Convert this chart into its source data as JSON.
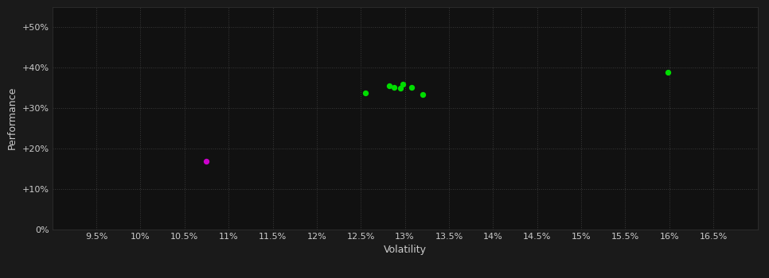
{
  "background_color": "#1a1a1a",
  "plot_bg_color": "#111111",
  "grid_color": "#3a3a3a",
  "xlabel": "Volatility",
  "ylabel": "Performance",
  "xlim": [
    0.09,
    0.17
  ],
  "ylim": [
    0.0,
    0.55
  ],
  "xtick_values": [
    0.095,
    0.1,
    0.105,
    0.11,
    0.115,
    0.12,
    0.125,
    0.13,
    0.135,
    0.14,
    0.145,
    0.15,
    0.155,
    0.16,
    0.165
  ],
  "xtick_labels": [
    "9.5%",
    "10%",
    "10.5%",
    "11%",
    "11.5%",
    "12%",
    "12.5%",
    "13%",
    "13.5%",
    "14%",
    "14.5%",
    "15%",
    "15.5%",
    "16%",
    "16.5%"
  ],
  "ytick_values": [
    0.0,
    0.1,
    0.2,
    0.3,
    0.4,
    0.5
  ],
  "ytick_labels": [
    "0%",
    "+10%",
    "+20%",
    "+30%",
    "+40%",
    "+50%"
  ],
  "green_points": [
    [
      0.1255,
      0.338
    ],
    [
      0.1288,
      0.352
    ],
    [
      0.1298,
      0.358
    ],
    [
      0.1295,
      0.35
    ],
    [
      0.1282,
      0.356
    ],
    [
      0.1308,
      0.352
    ],
    [
      0.132,
      0.334
    ],
    [
      0.1598,
      0.388
    ]
  ],
  "magenta_points": [
    [
      0.1075,
      0.168
    ]
  ],
  "green_color": "#00dd00",
  "magenta_color": "#cc00cc",
  "marker_size": 28,
  "label_fontsize": 9,
  "tick_fontsize": 8,
  "axis_label_color": "#cccccc",
  "tick_label_color": "#cccccc",
  "spine_color": "#333333"
}
